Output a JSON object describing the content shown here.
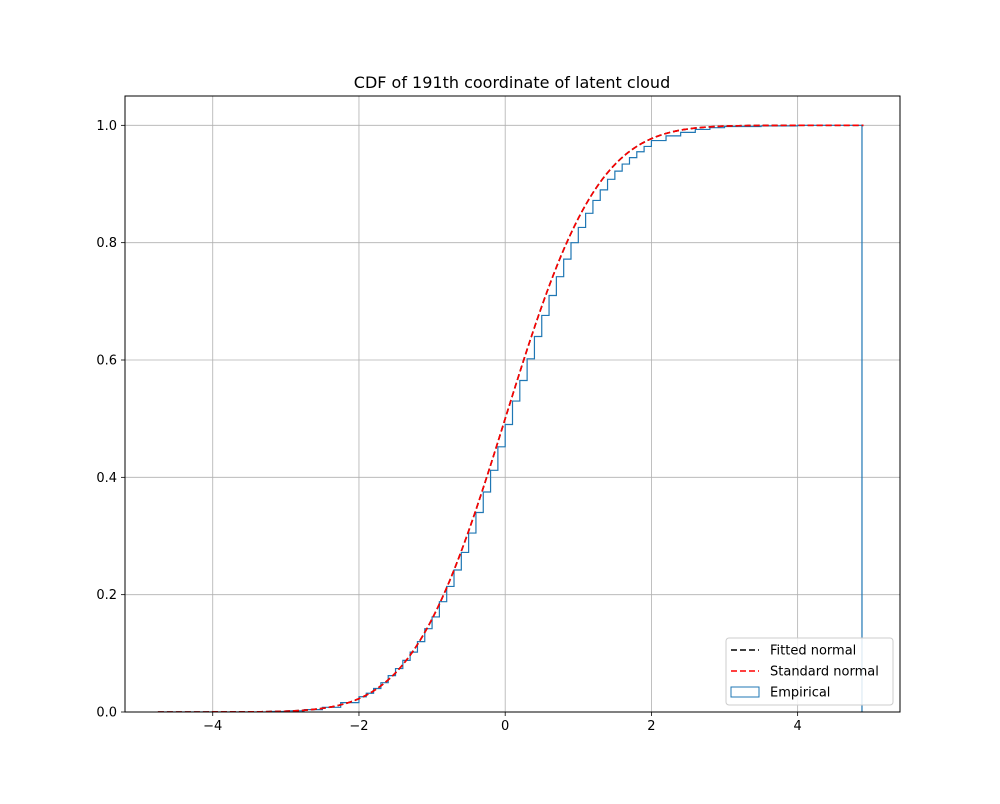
{
  "chart_data": {
    "type": "line",
    "title": "CDF of 191th coordinate of latent cloud",
    "xlabel": "",
    "ylabel": "",
    "xlim": [
      -5.2,
      5.4
    ],
    "ylim": [
      0.0,
      1.05
    ],
    "grid": true,
    "x_ticks": [
      {
        "value": -4,
        "label": "−4"
      },
      {
        "value": -2,
        "label": "−2"
      },
      {
        "value": 0,
        "label": "0"
      },
      {
        "value": 2,
        "label": "2"
      },
      {
        "value": 4,
        "label": "4"
      }
    ],
    "y_ticks": [
      {
        "value": 0.0,
        "label": "0.0"
      },
      {
        "value": 0.2,
        "label": "0.2"
      },
      {
        "value": 0.4,
        "label": "0.4"
      },
      {
        "value": 0.6,
        "label": "0.6"
      },
      {
        "value": 0.8,
        "label": "0.8"
      },
      {
        "value": 1.0,
        "label": "1.0"
      }
    ],
    "legend": {
      "placement": "lower-right",
      "entries": [
        {
          "label": "Fitted normal",
          "style": "dashed",
          "color": "#000000"
        },
        {
          "label": "Standard normal",
          "style": "dashed",
          "color": "#ff0000"
        },
        {
          "label": "Empirical",
          "style": "patch",
          "color": "#1f77b4"
        }
      ]
    },
    "series": [
      {
        "name": "Fitted normal",
        "kind": "normal_cdf",
        "mean": 0.0,
        "std": 1.0,
        "x_range": [
          -4.75,
          4.9
        ],
        "color": "#000000"
      },
      {
        "name": "Standard normal",
        "kind": "normal_cdf",
        "mean": 0.0,
        "std": 1.0,
        "x_range": [
          -4.75,
          4.9
        ],
        "color": "#ff0000"
      },
      {
        "name": "Empirical",
        "kind": "cumulative_histogram_step",
        "color": "#1f77b4",
        "bin_edges": [
          -4.75,
          -4.5,
          -4.25,
          -4.0,
          -3.75,
          -3.5,
          -3.25,
          -3.0,
          -2.75,
          -2.5,
          -2.25,
          -2.0,
          -1.9,
          -1.8,
          -1.7,
          -1.6,
          -1.5,
          -1.4,
          -1.3,
          -1.2,
          -1.1,
          -1.0,
          -0.9,
          -0.8,
          -0.7,
          -0.6,
          -0.5,
          -0.4,
          -0.3,
          -0.2,
          -0.1,
          0.0,
          0.1,
          0.2,
          0.3,
          0.4,
          0.5,
          0.6,
          0.7,
          0.8,
          0.9,
          1.0,
          1.1,
          1.2,
          1.3,
          1.4,
          1.5,
          1.6,
          1.7,
          1.8,
          1.9,
          2.0,
          2.2,
          2.4,
          2.6,
          2.8,
          3.0,
          3.5,
          4.0,
          4.5,
          4.88
        ],
        "cdf_values": [
          0.0,
          0.0,
          0.0,
          0.0,
          0.0,
          0.0,
          0.001,
          0.002,
          0.004,
          0.008,
          0.016,
          0.026,
          0.032,
          0.04,
          0.05,
          0.062,
          0.074,
          0.088,
          0.102,
          0.12,
          0.142,
          0.162,
          0.188,
          0.214,
          0.242,
          0.272,
          0.305,
          0.34,
          0.375,
          0.412,
          0.452,
          0.49,
          0.53,
          0.565,
          0.602,
          0.64,
          0.676,
          0.71,
          0.742,
          0.772,
          0.8,
          0.826,
          0.85,
          0.872,
          0.89,
          0.908,
          0.922,
          0.934,
          0.945,
          0.955,
          0.964,
          0.974,
          0.982,
          0.988,
          0.993,
          0.996,
          0.998,
          0.999,
          1.0,
          1.0,
          1.0
        ]
      }
    ]
  }
}
